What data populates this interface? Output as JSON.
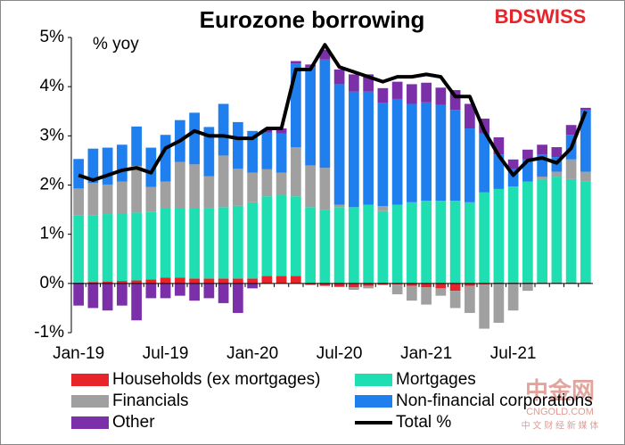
{
  "chart_data": {
    "type": "stacked-bar-line",
    "title": "Eurozone borrowing",
    "y_label": "% yoy",
    "logo": "BDSWISS",
    "watermark": [
      "中金网",
      "CNGOLD.COM",
      "中 文 财 经 新 媒 体"
    ],
    "categories": [
      "Jan-19",
      null,
      null,
      null,
      null,
      null,
      "Jul-19",
      null,
      null,
      null,
      null,
      null,
      "Jan-20",
      null,
      null,
      null,
      null,
      null,
      "Jul-20",
      null,
      null,
      null,
      null,
      null,
      "Jan-21",
      null,
      null,
      null,
      null,
      null,
      "Jul-21",
      null,
      null,
      null,
      null,
      null
    ],
    "ylim": [
      -1,
      5
    ],
    "yticks": [
      {
        "value": -1,
        "label": "-1%"
      },
      {
        "value": 0,
        "label": "0%"
      },
      {
        "value": 1,
        "label": "1%"
      },
      {
        "value": 2,
        "label": "2%"
      },
      {
        "value": 3,
        "label": "3%"
      },
      {
        "value": 4,
        "label": "4%"
      },
      {
        "value": 5,
        "label": "5%"
      }
    ],
    "series": [
      {
        "name": "Households (ex mortgages)",
        "color": "#e8242b",
        "values": [
          0.02,
          0.03,
          0.04,
          0.05,
          0.06,
          0.08,
          0.12,
          0.12,
          0.1,
          0.1,
          0.1,
          0.1,
          0.1,
          0.15,
          0.15,
          0.15,
          -0.03,
          -0.05,
          -0.07,
          -0.08,
          -0.05,
          -0.03,
          -0.02,
          -0.05,
          -0.08,
          -0.1,
          -0.15,
          -0.05,
          -0.02,
          0.02,
          0.02,
          0.02,
          0.02,
          0.02,
          0.02,
          0.02
        ]
      },
      {
        "name": "Mortgages",
        "color": "#1fdfb2",
        "values": [
          1.36,
          1.36,
          1.37,
          1.37,
          1.38,
          1.38,
          1.4,
          1.4,
          1.42,
          1.43,
          1.45,
          1.48,
          1.55,
          1.62,
          1.65,
          1.62,
          1.55,
          1.5,
          1.55,
          1.55,
          1.6,
          1.47,
          1.6,
          1.65,
          1.68,
          1.68,
          1.68,
          1.65,
          1.85,
          1.9,
          1.95,
          2.05,
          2.1,
          2.15,
          2.1,
          2.05
        ]
      },
      {
        "name": "Financials",
        "color": "#a0a0a0",
        "values": [
          0.55,
          0.65,
          0.6,
          0.65,
          0.95,
          0.5,
          0.55,
          0.95,
          0.9,
          0.65,
          1.05,
          0.75,
          0.6,
          0.55,
          0.45,
          1.0,
          0.85,
          0.85,
          0.05,
          -0.05,
          -0.05,
          0.1,
          -0.2,
          -0.3,
          -0.35,
          -0.15,
          -0.35,
          -0.55,
          -0.9,
          -0.8,
          -0.55,
          -0.15,
          0.05,
          0.1,
          0.4,
          0.2
        ]
      },
      {
        "name": "Non-financial corporations",
        "color": "#1f7fef",
        "values": [
          0.6,
          0.7,
          0.75,
          0.75,
          0.8,
          0.8,
          0.95,
          0.85,
          1.05,
          1.0,
          1.05,
          0.95,
          0.85,
          0.75,
          0.8,
          1.7,
          2.0,
          2.2,
          2.45,
          2.35,
          2.3,
          2.1,
          2.15,
          2.0,
          2.0,
          1.95,
          1.85,
          1.5,
          1.2,
          0.7,
          0.35,
          0.45,
          0.45,
          0.3,
          0.5,
          1.25
        ]
      },
      {
        "name": "Other",
        "color": "#7b2fa8",
        "values": [
          -0.45,
          -0.5,
          -0.55,
          -0.45,
          -0.75,
          -0.3,
          -0.3,
          -0.25,
          -0.35,
          -0.3,
          -0.4,
          -0.6,
          -0.1,
          0.05,
          0.1,
          0.05,
          0.05,
          0.2,
          0.3,
          0.35,
          0.35,
          0.3,
          0.35,
          0.4,
          0.4,
          0.35,
          0.4,
          0.5,
          0.3,
          0.35,
          0.2,
          0.2,
          0.2,
          0.2,
          0.2,
          0.05
        ]
      },
      {
        "name": "Total %",
        "color": "#000000",
        "type": "line",
        "values": [
          2.2,
          2.1,
          2.2,
          2.3,
          2.35,
          2.25,
          2.75,
          2.9,
          3.1,
          3.0,
          3.0,
          2.95,
          2.95,
          3.15,
          3.15,
          4.35,
          4.35,
          4.85,
          4.4,
          4.3,
          4.2,
          4.1,
          4.2,
          4.2,
          4.25,
          4.2,
          3.8,
          3.8,
          3.1,
          2.6,
          2.2,
          2.5,
          2.55,
          2.45,
          2.75,
          3.5
        ]
      }
    ]
  }
}
